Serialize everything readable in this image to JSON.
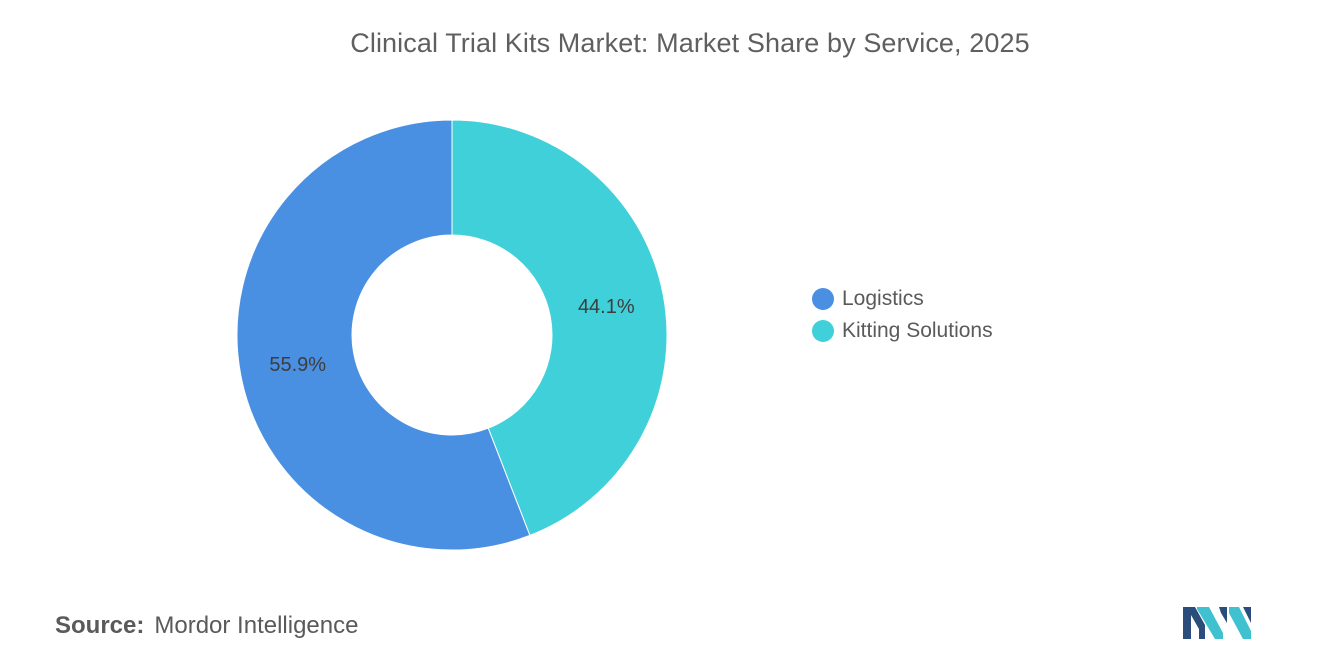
{
  "chart_data": {
    "type": "pie",
    "title": "Clinical Trial Kits Market: Market Share by Service, 2025",
    "categories": [
      "Logistics",
      "Kitting Solutions"
    ],
    "values": [
      55.9,
      44.1
    ],
    "value_labels": [
      "55.9%",
      "44.1%"
    ],
    "colors": [
      "#4a90e2",
      "#40d0da"
    ],
    "donut": true,
    "legend_position": "right"
  },
  "source": {
    "label": "Source:",
    "text": "Mordor Intelligence"
  },
  "logo": {
    "icon": "mordor-intelligence-logo",
    "colors": [
      "#2b4d7c",
      "#3fc1cf"
    ]
  }
}
